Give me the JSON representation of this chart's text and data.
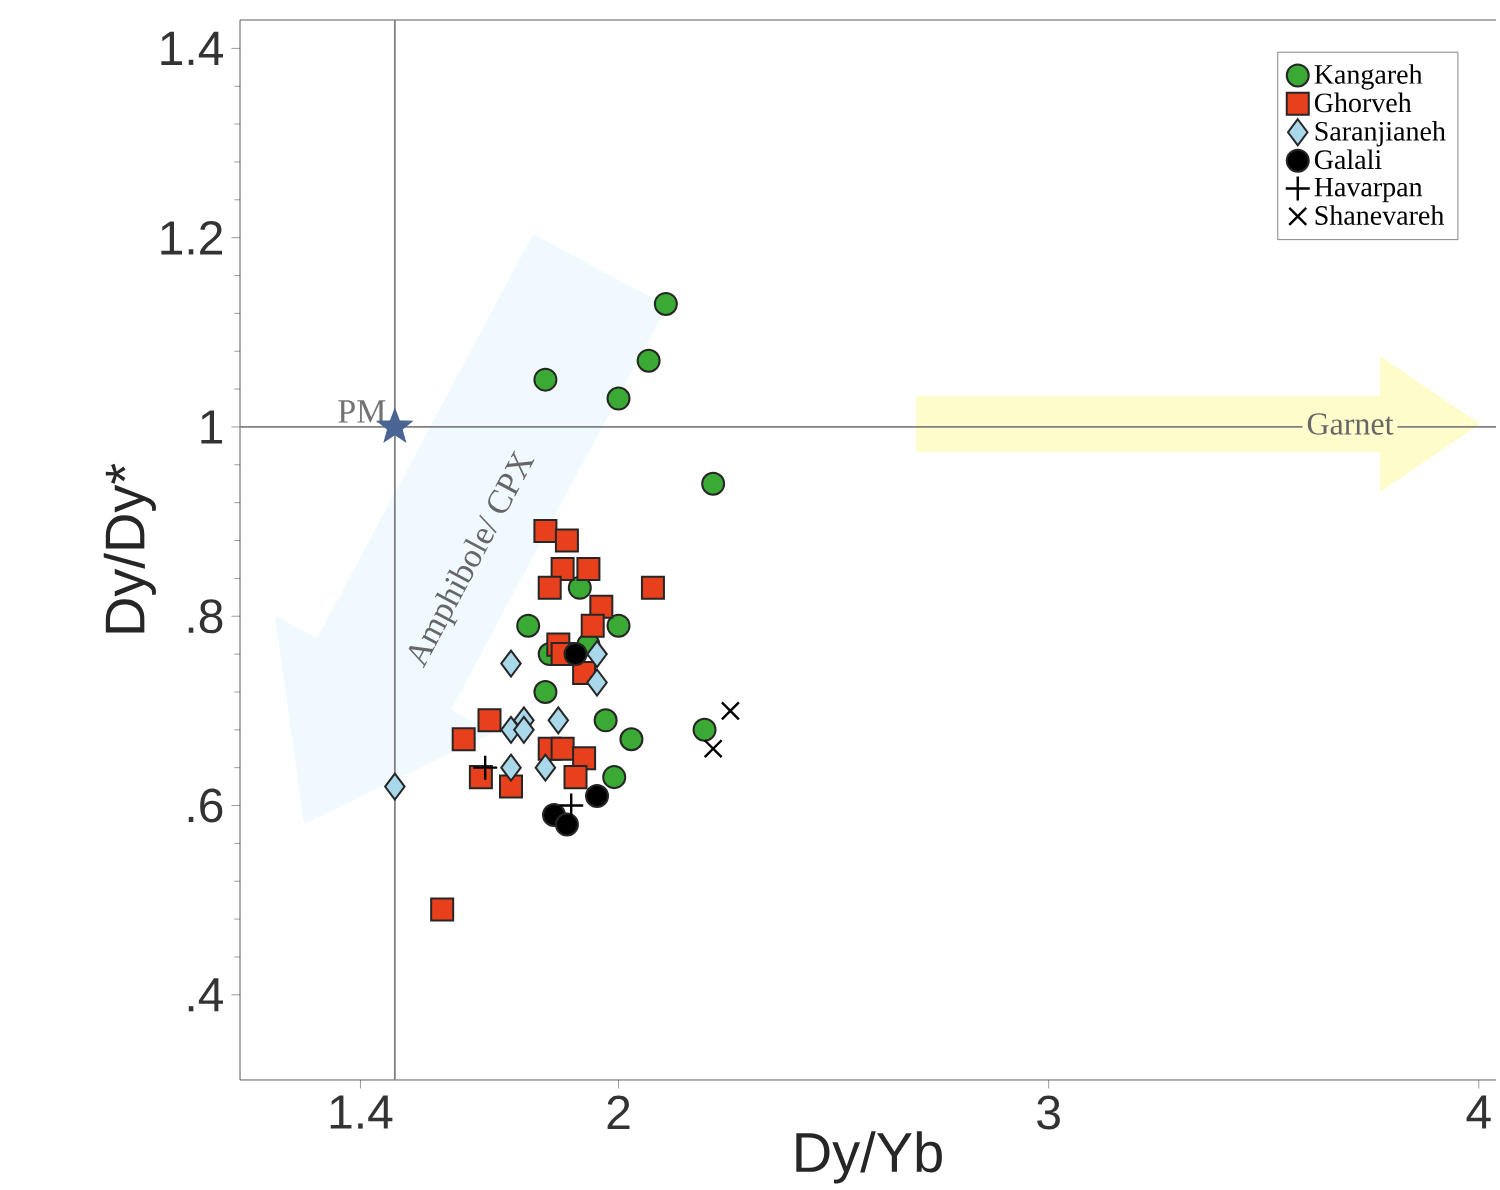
{
  "chart_data": {
    "type": "scatter",
    "xlabel": "Dy/Yb",
    "ylabel": "Dy/Dy*",
    "xlim": [
      1.12,
      4.04
    ],
    "ylim": [
      0.31,
      1.43
    ],
    "xticks": [
      1.4,
      2,
      3,
      4
    ],
    "yticks": [
      {
        "value": 0.4,
        "label": ".4"
      },
      {
        "value": 0.6,
        "label": ".6"
      },
      {
        "value": 0.8,
        "label": ".8"
      },
      1,
      1.2,
      1.4
    ],
    "legend": "top right",
    "grid": false,
    "ref_lines": [
      {
        "axis": "x",
        "value": 1.48,
        "color": "#808080"
      },
      {
        "axis": "y",
        "value": 1,
        "color": "#808080"
      }
    ],
    "annotations": [
      "Amphibole/ CPX",
      "Garnet",
      {
        "text": "PM",
        "x": 1.48,
        "y": 1.0
      }
    ],
    "series": [
      {
        "name": "Kangareh",
        "color": "#3aaa35",
        "marker": "circle",
        "x": [
          1.83,
          2.0,
          2.07,
          2.11,
          2.22,
          1.91,
          2.0,
          1.79,
          1.84,
          1.93,
          1.83,
          1.97,
          2.03,
          1.99,
          2.2
        ],
        "values": [
          1.05,
          1.03,
          1.07,
          1.13,
          0.94,
          0.83,
          0.79,
          0.79,
          0.76,
          0.77,
          0.72,
          0.69,
          0.67,
          0.63,
          0.68
        ]
      },
      {
        "name": "Ghorveh",
        "color": "#e8401c",
        "marker": "square",
        "x": [
          1.83,
          1.88,
          1.87,
          1.93,
          1.84,
          2.08,
          1.96,
          1.94,
          1.86,
          1.87,
          1.92,
          1.7,
          1.64,
          1.68,
          1.75,
          1.84,
          1.87,
          1.92,
          1.9,
          1.59
        ],
        "values": [
          0.89,
          0.88,
          0.85,
          0.85,
          0.83,
          0.83,
          0.81,
          0.79,
          0.77,
          0.76,
          0.74,
          0.69,
          0.67,
          0.63,
          0.62,
          0.66,
          0.66,
          0.65,
          0.63,
          0.49
        ]
      },
      {
        "name": "Saranjianeh",
        "color": "#a8d8ea",
        "marker": "diamond",
        "x": [
          1.75,
          1.95,
          1.95,
          1.78,
          1.86,
          1.75,
          1.78,
          1.75,
          1.83,
          1.48
        ],
        "values": [
          0.75,
          0.76,
          0.73,
          0.69,
          0.69,
          0.68,
          0.68,
          0.64,
          0.64,
          0.62
        ]
      },
      {
        "name": "Galali",
        "color": "#000000",
        "marker": "circle",
        "x": [
          1.85,
          1.88,
          1.95,
          1.9
        ],
        "values": [
          0.59,
          0.58,
          0.61,
          0.76
        ]
      },
      {
        "name": "Havarpan",
        "color": "#000000",
        "marker": "plus",
        "x": [
          1.69,
          1.89
        ],
        "values": [
          0.64,
          0.6
        ]
      },
      {
        "name": "Shanevareh",
        "color": "#000000",
        "marker": "cross",
        "x": [
          2.26,
          2.22
        ],
        "values": [
          0.7,
          0.66
        ]
      },
      {
        "color": "#4a6494",
        "marker": "star",
        "x": [
          1.48
        ],
        "values": [
          1.0
        ]
      }
    ]
  }
}
